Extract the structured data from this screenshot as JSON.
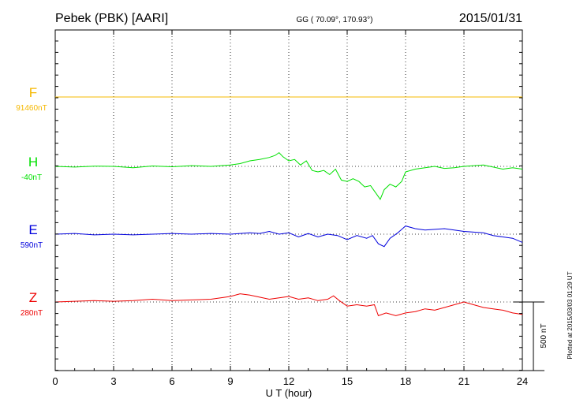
{
  "header": {
    "station": "Pebek (PBK)  [AARI]",
    "coords": "GG ( 70.09°, 170.93°)",
    "date": "2015/01/31"
  },
  "footer": {
    "plotted": "Plotted at 2015/03/03 01:29 UT"
  },
  "chart_data": {
    "type": "line",
    "xlabel": "U T (hour)",
    "xlim": [
      0,
      24
    ],
    "xticks": [
      "0",
      "3",
      "6",
      "9",
      "12",
      "15",
      "18",
      "21",
      "24"
    ],
    "grid": true,
    "scale_bar": {
      "label": "500 nT",
      "value_nT": 500
    },
    "series": [
      {
        "name": "F",
        "baseline": "91460nT",
        "color": "#f5b800",
        "x": [
          0,
          24
        ],
        "y": [
          0,
          0
        ]
      },
      {
        "name": "H",
        "baseline": "-40nT",
        "color": "#00e000",
        "x": [
          0,
          1,
          2,
          3,
          4,
          5,
          6,
          7,
          8,
          9,
          9.5,
          10,
          10.5,
          11,
          11.3,
          11.5,
          11.7,
          12,
          12.3,
          12.6,
          12.9,
          13.2,
          13.5,
          13.8,
          14.1,
          14.4,
          14.7,
          15,
          15.3,
          15.6,
          15.9,
          16.2,
          16.5,
          16.7,
          16.9,
          17.2,
          17.5,
          17.8,
          18,
          18.5,
          19,
          19.5,
          20,
          20.5,
          21,
          21.5,
          22,
          22.5,
          23,
          23.5,
          24
        ],
        "y": [
          0,
          -5,
          2,
          0,
          -10,
          3,
          -3,
          5,
          0,
          10,
          20,
          40,
          50,
          65,
          80,
          100,
          70,
          40,
          50,
          10,
          40,
          -30,
          -40,
          -30,
          -60,
          -20,
          -100,
          -110,
          -90,
          -110,
          -150,
          -140,
          -200,
          -240,
          -170,
          -130,
          -150,
          -110,
          -40,
          -20,
          -10,
          0,
          -15,
          -10,
          0,
          5,
          10,
          -5,
          -20,
          -10,
          -20
        ]
      },
      {
        "name": "E",
        "baseline": "590nT",
        "color": "#0000dd",
        "x": [
          0,
          1,
          2,
          3,
          4,
          5,
          6,
          7,
          8,
          9,
          10,
          10.5,
          11,
          11.5,
          12,
          12.5,
          13,
          13.5,
          14,
          14.5,
          15,
          15.5,
          16,
          16.3,
          16.6,
          16.9,
          17.2,
          17.6,
          18,
          18.5,
          19,
          20,
          21,
          22,
          22.5,
          23,
          23.5,
          24
        ],
        "y": [
          0,
          5,
          -5,
          0,
          -5,
          0,
          5,
          0,
          5,
          0,
          10,
          5,
          20,
          0,
          10,
          -20,
          5,
          -20,
          0,
          -10,
          -40,
          -10,
          -30,
          -10,
          -70,
          -90,
          -30,
          10,
          60,
          40,
          30,
          40,
          20,
          10,
          -10,
          -20,
          -30,
          -60
        ]
      },
      {
        "name": "Z",
        "baseline": "280nT",
        "color": "#ee0000",
        "x": [
          0,
          1,
          2,
          3,
          4,
          5,
          6,
          7,
          8,
          9,
          9.5,
          10,
          10.5,
          11,
          11.5,
          12,
          12.5,
          13,
          13.5,
          14,
          14.3,
          14.6,
          15,
          15.5,
          16,
          16.4,
          16.6,
          17,
          17.5,
          18,
          18.5,
          19,
          19.5,
          20,
          20.5,
          21,
          21.5,
          22,
          22.5,
          23,
          23.5,
          24
        ],
        "y": [
          0,
          5,
          10,
          5,
          10,
          20,
          10,
          15,
          20,
          40,
          60,
          50,
          35,
          20,
          30,
          40,
          20,
          30,
          10,
          20,
          45,
          10,
          -30,
          -20,
          -30,
          -20,
          -100,
          -80,
          -100,
          -80,
          -70,
          -50,
          -60,
          -40,
          -20,
          0,
          -20,
          -40,
          -50,
          -60,
          -80,
          -90
        ]
      }
    ]
  }
}
